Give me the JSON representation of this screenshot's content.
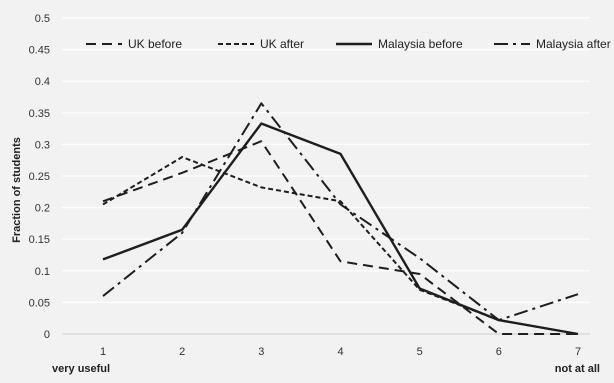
{
  "chart_data": {
    "type": "line",
    "x": [
      1,
      2,
      3,
      4,
      5,
      6,
      7
    ],
    "series": [
      {
        "name": "UK before",
        "values": [
          0.21,
          0.255,
          0.305,
          0.115,
          0.095,
          0.0,
          0.0
        ],
        "dash": "long-dash"
      },
      {
        "name": "UK after",
        "values": [
          0.205,
          0.28,
          0.232,
          0.21,
          0.07,
          0.022,
          0.0
        ],
        "dash": "short-dash"
      },
      {
        "name": "Malaysia before",
        "values": [
          0.118,
          0.165,
          0.333,
          0.285,
          0.072,
          0.022,
          0.0
        ],
        "dash": "solid"
      },
      {
        "name": "Malaysia after",
        "values": [
          0.06,
          0.16,
          0.365,
          0.205,
          0.12,
          0.022,
          0.063
        ],
        "dash": "dash-dot"
      }
    ],
    "ylabel": "Fraction of students",
    "xlabel": "",
    "ylim": [
      0,
      0.5
    ],
    "yticks": [
      "0",
      "0.05",
      "0.1",
      "0.15",
      "0.2",
      "0.25",
      "0.3",
      "0.35",
      "0.4",
      "0.45",
      "0.5"
    ],
    "xticks": [
      "1",
      "2",
      "3",
      "4",
      "5",
      "6",
      "7"
    ],
    "x_end_labels": {
      "left": "very useful",
      "right": "not at all"
    },
    "grid": true,
    "legend": "top",
    "colors": {
      "background": "#f2f2f2",
      "line": "#1e1e1e",
      "grid": "#ffffff"
    }
  }
}
